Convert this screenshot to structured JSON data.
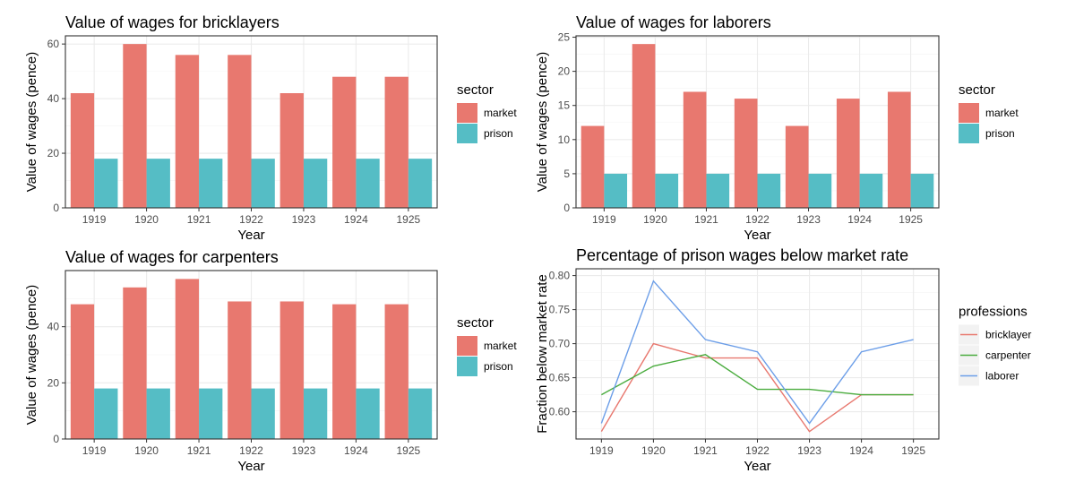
{
  "colors": {
    "market": "#e8786f",
    "prison": "#55bdc5",
    "bricklayer": "#e8786f",
    "carpenter": "#4aac3e",
    "laborer": "#6c9ee8",
    "grid": "#ebebeb",
    "panel_border": "#333333"
  },
  "chart_data": [
    {
      "type": "bar",
      "title": "Value of wages for bricklayers",
      "xlabel": "Year",
      "ylabel": "Value of wages (pence)",
      "categories": [
        "1919",
        "1920",
        "1921",
        "1922",
        "1923",
        "1924",
        "1925"
      ],
      "series": [
        {
          "name": "market",
          "values": [
            42,
            60,
            56,
            56,
            42,
            48,
            48
          ]
        },
        {
          "name": "prison",
          "values": [
            18,
            18,
            18,
            18,
            18,
            18,
            18
          ]
        }
      ],
      "ylim": [
        0,
        63
      ],
      "yticks": [
        0,
        20,
        40,
        60
      ],
      "legend": {
        "title": "sector",
        "entries": [
          "market",
          "prison"
        ],
        "position": "right"
      },
      "grid": true
    },
    {
      "type": "bar",
      "title": "Value of wages for laborers",
      "xlabel": "Year",
      "ylabel": "Value of wages (pence)",
      "categories": [
        "1919",
        "1920",
        "1921",
        "1922",
        "1923",
        "1924",
        "1925"
      ],
      "series": [
        {
          "name": "market",
          "values": [
            12,
            24,
            17,
            16,
            12,
            16,
            17
          ]
        },
        {
          "name": "prison",
          "values": [
            5,
            5,
            5,
            5,
            5,
            5,
            5
          ]
        }
      ],
      "ylim": [
        0,
        25.2
      ],
      "yticks": [
        0,
        5,
        10,
        15,
        20,
        25
      ],
      "legend": {
        "title": "sector",
        "entries": [
          "market",
          "prison"
        ],
        "position": "right"
      },
      "grid": true
    },
    {
      "type": "bar",
      "title": "Value of wages for carpenters",
      "xlabel": "Year",
      "ylabel": "Value of wages (pence)",
      "categories": [
        "1919",
        "1920",
        "1921",
        "1922",
        "1923",
        "1924",
        "1925"
      ],
      "series": [
        {
          "name": "market",
          "values": [
            48,
            54,
            57,
            49,
            49,
            48,
            48
          ]
        },
        {
          "name": "prison",
          "values": [
            18,
            18,
            18,
            18,
            18,
            18,
            18
          ]
        }
      ],
      "ylim": [
        0,
        60
      ],
      "yticks": [
        0,
        20,
        40
      ],
      "legend": {
        "title": "sector",
        "entries": [
          "market",
          "prison"
        ],
        "position": "right"
      },
      "grid": true
    },
    {
      "type": "line",
      "title": "Percentage of prison wages below market rate",
      "xlabel": "Year",
      "ylabel": "Fraction below market rate",
      "categories": [
        "1919",
        "1920",
        "1921",
        "1922",
        "1923",
        "1924",
        "1925"
      ],
      "series": [
        {
          "name": "bricklayer",
          "values": [
            0.571,
            0.7,
            0.679,
            0.679,
            0.571,
            0.625,
            0.625
          ]
        },
        {
          "name": "carpenter",
          "values": [
            0.625,
            0.667,
            0.684,
            0.633,
            0.633,
            0.625,
            0.625
          ]
        },
        {
          "name": "laborer",
          "values": [
            0.583,
            0.792,
            0.706,
            0.688,
            0.583,
            0.688,
            0.706
          ]
        }
      ],
      "ylim": [
        0.56,
        0.81
      ],
      "yticks": [
        0.6,
        0.65,
        0.7,
        0.75,
        0.8
      ],
      "yticklabels": [
        "0.60",
        "0.65",
        "0.70",
        "0.75",
        "0.80"
      ],
      "legend": {
        "title": "professions",
        "entries": [
          "bricklayer",
          "carpenter",
          "laborer"
        ],
        "position": "right"
      },
      "grid": true
    }
  ]
}
